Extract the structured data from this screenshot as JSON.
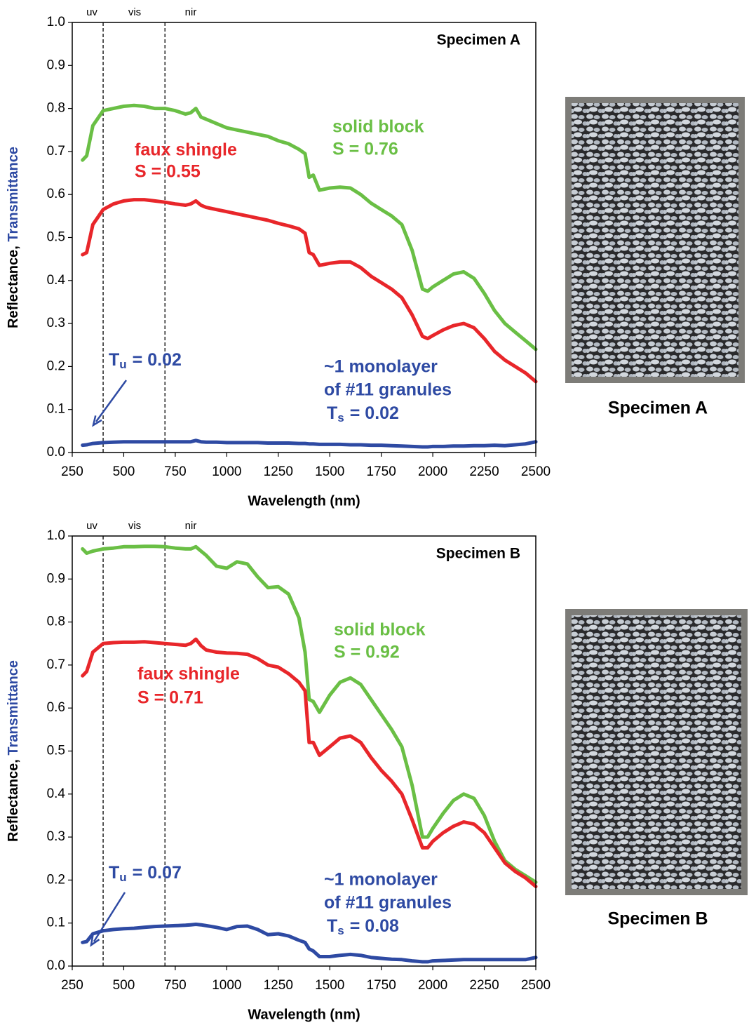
{
  "chart_data": [
    {
      "type": "line",
      "xlabel": "Wavelength (nm)",
      "ylabel": [
        "Reflectance, ",
        "Transmittance"
      ],
      "ylabel_colors": [
        "#000000",
        "#2e4aa3"
      ],
      "x": [
        300,
        320,
        350,
        400,
        450,
        500,
        550,
        600,
        650,
        700,
        750,
        800,
        825,
        850,
        875,
        900,
        950,
        1000,
        1050,
        1100,
        1150,
        1200,
        1250,
        1300,
        1350,
        1380,
        1400,
        1420,
        1450,
        1500,
        1550,
        1600,
        1650,
        1700,
        1750,
        1800,
        1850,
        1900,
        1950,
        1975,
        2000,
        2050,
        2100,
        2150,
        2200,
        2250,
        2300,
        2350,
        2400,
        2450,
        2500
      ],
      "series": [
        {
          "color": "#6abf45",
          "values": [
            0.68,
            0.69,
            0.76,
            0.795,
            0.8,
            0.805,
            0.807,
            0.805,
            0.8,
            0.8,
            0.795,
            0.787,
            0.79,
            0.8,
            0.78,
            0.775,
            0.765,
            0.755,
            0.75,
            0.745,
            0.74,
            0.735,
            0.725,
            0.718,
            0.705,
            0.695,
            0.64,
            0.645,
            0.61,
            0.615,
            0.617,
            0.615,
            0.6,
            0.58,
            0.565,
            0.55,
            0.53,
            0.47,
            0.38,
            0.375,
            0.385,
            0.4,
            0.415,
            0.42,
            0.405,
            0.37,
            0.33,
            0.3,
            0.28,
            0.26,
            0.24
          ]
        },
        {
          "color": "#e8262a",
          "values": [
            0.46,
            0.465,
            0.53,
            0.565,
            0.578,
            0.585,
            0.588,
            0.588,
            0.585,
            0.582,
            0.578,
            0.575,
            0.578,
            0.585,
            0.575,
            0.57,
            0.565,
            0.56,
            0.555,
            0.55,
            0.545,
            0.54,
            0.533,
            0.527,
            0.52,
            0.51,
            0.465,
            0.46,
            0.435,
            0.44,
            0.443,
            0.443,
            0.43,
            0.41,
            0.395,
            0.38,
            0.36,
            0.32,
            0.27,
            0.265,
            0.272,
            0.285,
            0.295,
            0.3,
            0.29,
            0.265,
            0.235,
            0.215,
            0.2,
            0.185,
            0.165
          ]
        },
        {
          "color": "#2e4aa3",
          "values": [
            0.017,
            0.018,
            0.021,
            0.023,
            0.024,
            0.025,
            0.025,
            0.025,
            0.025,
            0.025,
            0.025,
            0.025,
            0.025,
            0.028,
            0.025,
            0.024,
            0.024,
            0.023,
            0.023,
            0.023,
            0.023,
            0.022,
            0.022,
            0.022,
            0.021,
            0.021,
            0.02,
            0.02,
            0.019,
            0.019,
            0.019,
            0.018,
            0.018,
            0.017,
            0.017,
            0.016,
            0.015,
            0.014,
            0.013,
            0.013,
            0.014,
            0.014,
            0.015,
            0.015,
            0.016,
            0.016,
            0.017,
            0.016,
            0.018,
            0.02,
            0.025
          ]
        }
      ],
      "xlim": [
        250,
        2500
      ],
      "ylim": [
        0,
        1
      ],
      "xticks": [
        250,
        500,
        750,
        1000,
        1250,
        1500,
        1750,
        2000,
        2250,
        2500
      ],
      "yticks": [
        {
          "value": 0,
          "label": "0.0"
        },
        0.1,
        0.2,
        0.3,
        0.4,
        0.5,
        0.6,
        0.7,
        0.8,
        0.9,
        {
          "value": 1,
          "label": "1.0"
        }
      ],
      "vlines": [
        400,
        700
      ],
      "regions": [
        "uv",
        "vis",
        "nir"
      ],
      "annotations": {
        "specimen": "Specimen A",
        "solid": [
          "solid block",
          "S = 0.76"
        ],
        "faux": [
          "faux shingle",
          "S = 0.55"
        ],
        "tu": {
          "symbol": "T",
          "sub": "u",
          "text": "= 0.02"
        },
        "mono": [
          "~1 monolayer",
          "of #11 granules"
        ],
        "ts": {
          "symbol": "T",
          "sub": "s",
          "text": "= 0.02"
        }
      }
    },
    {
      "type": "line",
      "xlabel": "Wavelength (nm)",
      "ylabel": [
        "Reflectance, ",
        "Transmittance"
      ],
      "ylabel_colors": [
        "#000000",
        "#2e4aa3"
      ],
      "x": [
        300,
        320,
        350,
        400,
        450,
        500,
        550,
        600,
        650,
        700,
        750,
        800,
        825,
        850,
        875,
        900,
        950,
        1000,
        1050,
        1100,
        1150,
        1200,
        1250,
        1300,
        1350,
        1380,
        1400,
        1420,
        1450,
        1500,
        1550,
        1600,
        1650,
        1700,
        1750,
        1800,
        1850,
        1900,
        1950,
        1975,
        2000,
        2050,
        2100,
        2150,
        2200,
        2250,
        2300,
        2350,
        2400,
        2450,
        2500
      ],
      "series": [
        {
          "color": "#6abf45",
          "values": [
            0.97,
            0.96,
            0.965,
            0.97,
            0.972,
            0.975,
            0.975,
            0.976,
            0.976,
            0.975,
            0.972,
            0.97,
            0.97,
            0.975,
            0.965,
            0.955,
            0.93,
            0.925,
            0.94,
            0.935,
            0.905,
            0.88,
            0.882,
            0.865,
            0.81,
            0.73,
            0.62,
            0.615,
            0.59,
            0.63,
            0.66,
            0.67,
            0.655,
            0.62,
            0.585,
            0.55,
            0.51,
            0.42,
            0.3,
            0.3,
            0.32,
            0.355,
            0.385,
            0.4,
            0.39,
            0.35,
            0.29,
            0.245,
            0.225,
            0.21,
            0.195
          ]
        },
        {
          "color": "#e8262a",
          "values": [
            0.675,
            0.685,
            0.73,
            0.75,
            0.752,
            0.753,
            0.753,
            0.754,
            0.752,
            0.75,
            0.748,
            0.746,
            0.75,
            0.76,
            0.745,
            0.735,
            0.73,
            0.728,
            0.727,
            0.725,
            0.715,
            0.7,
            0.695,
            0.68,
            0.66,
            0.64,
            0.52,
            0.52,
            0.49,
            0.51,
            0.53,
            0.535,
            0.52,
            0.485,
            0.455,
            0.43,
            0.4,
            0.34,
            0.275,
            0.275,
            0.29,
            0.31,
            0.325,
            0.335,
            0.33,
            0.31,
            0.275,
            0.24,
            0.22,
            0.205,
            0.185
          ]
        },
        {
          "color": "#2e4aa3",
          "values": [
            0.055,
            0.057,
            0.075,
            0.082,
            0.085,
            0.087,
            0.088,
            0.09,
            0.092,
            0.093,
            0.094,
            0.095,
            0.096,
            0.097,
            0.096,
            0.094,
            0.09,
            0.085,
            0.092,
            0.093,
            0.085,
            0.073,
            0.075,
            0.07,
            0.06,
            0.055,
            0.04,
            0.035,
            0.022,
            0.022,
            0.025,
            0.027,
            0.025,
            0.02,
            0.018,
            0.016,
            0.015,
            0.012,
            0.01,
            0.01,
            0.012,
            0.013,
            0.014,
            0.015,
            0.015,
            0.015,
            0.015,
            0.015,
            0.015,
            0.015,
            0.02
          ]
        }
      ],
      "xlim": [
        250,
        2500
      ],
      "ylim": [
        0,
        1
      ],
      "xticks": [
        250,
        500,
        750,
        1000,
        1250,
        1500,
        1750,
        2000,
        2250,
        2500
      ],
      "yticks": [
        {
          "value": 0,
          "label": "0.0"
        },
        0.1,
        0.2,
        0.3,
        0.4,
        0.5,
        0.6,
        0.7,
        0.8,
        0.9,
        {
          "value": 1,
          "label": "1.0"
        }
      ],
      "vlines": [
        400,
        700
      ],
      "regions": [
        "uv",
        "vis",
        "nir"
      ],
      "annotations": {
        "specimen": "Specimen B",
        "solid": [
          "solid block",
          "S = 0.92"
        ],
        "faux": [
          "faux shingle",
          "S = 0.71"
        ],
        "tu": {
          "symbol": "T",
          "sub": "u",
          "text": "= 0.07"
        },
        "mono": [
          "~1 monolayer",
          "of #11 granules"
        ],
        "ts": {
          "symbol": "T",
          "sub": "s",
          "text": "= 0.08"
        }
      }
    }
  ],
  "photos": [
    "Specimen A",
    "Specimen B"
  ]
}
